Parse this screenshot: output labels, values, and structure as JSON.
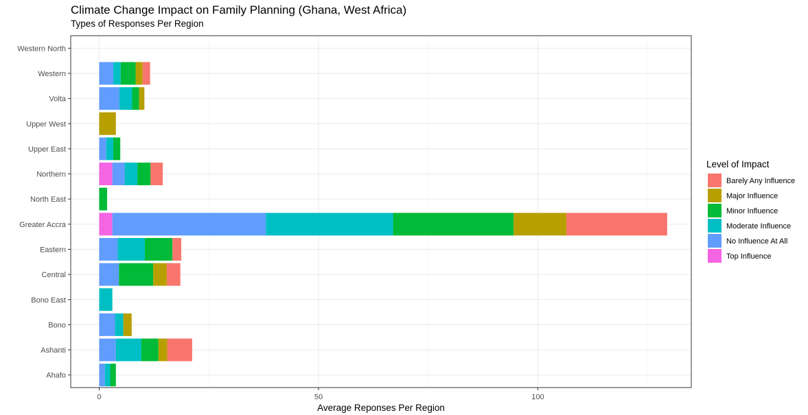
{
  "chart_data": {
    "type": "bar",
    "orientation": "horizontal",
    "stacked": true,
    "title": "Climate Change Impact on Family Planning (Ghana, West Africa)",
    "subtitle": "Types of Responses Per Region",
    "xlabel": "Average Reponses Per Region",
    "ylabel": "",
    "xlim": [
      -6.5,
      135
    ],
    "xticks": [
      0,
      50,
      100
    ],
    "grid": true,
    "legend": {
      "title": "Level of Impact",
      "position": "right",
      "entries": [
        "Barely Any Influence",
        "Major Influence",
        "Minor Influence",
        "Moderate Influence",
        "No Influence At All",
        "Top Influence"
      ]
    },
    "stack_order": [
      "Top Influence",
      "No Influence At All",
      "Moderate Influence",
      "Minor Influence",
      "Major Influence",
      "Barely Any Influence"
    ],
    "colors": {
      "Barely Any Influence": "#F8766D",
      "Major Influence": "#B79F00",
      "Minor Influence": "#00BA38",
      "Moderate Influence": "#00BFC4",
      "No Influence At All": "#619CFF",
      "Top Influence": "#F564E3"
    },
    "categories": [
      "Ahafo",
      "Ashanti",
      "Bono",
      "Bono East",
      "Central",
      "Eastern",
      "Greater Accra",
      "North East",
      "Northern",
      "Upper East",
      "Upper West",
      "Volta",
      "Western",
      "Western North"
    ],
    "series": [
      {
        "name": "Top Influence",
        "values": [
          0,
          0,
          0,
          0,
          0,
          0,
          3,
          0,
          3,
          0,
          0,
          0,
          0,
          0
        ]
      },
      {
        "name": "No Influence At All",
        "values": [
          1.3,
          3.8,
          3.6,
          0,
          4.5,
          4.2,
          35,
          0,
          2.8,
          1.6,
          0,
          4.6,
          3.2,
          0
        ]
      },
      {
        "name": "Moderate Influence",
        "values": [
          1.2,
          5.8,
          1.9,
          3,
          0,
          6.2,
          29,
          0,
          2.9,
          1.6,
          0,
          2.9,
          1.7,
          0
        ]
      },
      {
        "name": "Minor Influence",
        "values": [
          1.3,
          3.9,
          0,
          0,
          7.8,
          6.3,
          27.5,
          1.8,
          3.0,
          1.6,
          0,
          1.6,
          3.4,
          0
        ]
      },
      {
        "name": "Major Influence",
        "values": [
          0,
          2.0,
          1.9,
          0,
          3.1,
          0,
          12,
          0,
          0,
          0,
          3.8,
          1.2,
          1.6,
          0
        ]
      },
      {
        "name": "Barely Any Influence",
        "values": [
          0,
          5.7,
          0,
          0,
          3.1,
          2.0,
          23,
          0,
          2.8,
          0,
          0,
          0,
          1.7,
          0
        ]
      }
    ]
  }
}
